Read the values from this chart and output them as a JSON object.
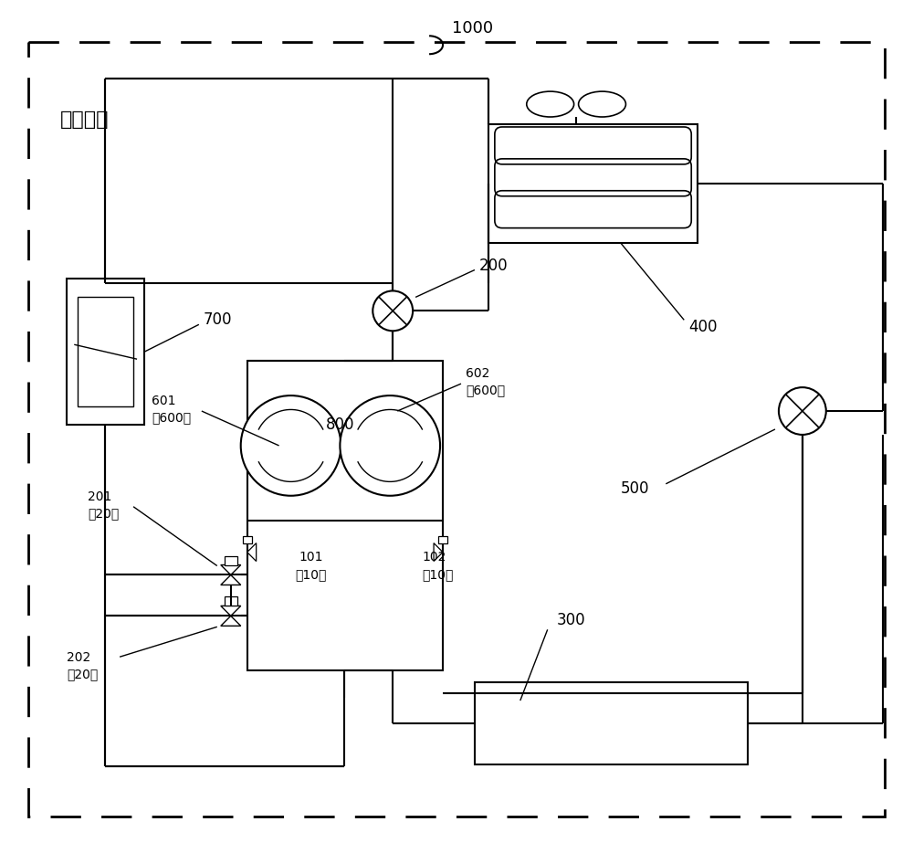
{
  "bg_color": "#ffffff",
  "lc": "#000000",
  "title": "空调机组",
  "lbl_1000": "1000",
  "lbl_400": "400",
  "lbl_200": "200",
  "lbl_700": "700",
  "lbl_800": "800",
  "lbl_500": "500",
  "lbl_300": "300",
  "lbl_601": "601\n（600）",
  "lbl_602": "602\n（600）",
  "lbl_201": "201\n（20）",
  "lbl_202": "202\n（20）",
  "lbl_101": "101\n（10）",
  "lbl_102": "102\n（10）"
}
